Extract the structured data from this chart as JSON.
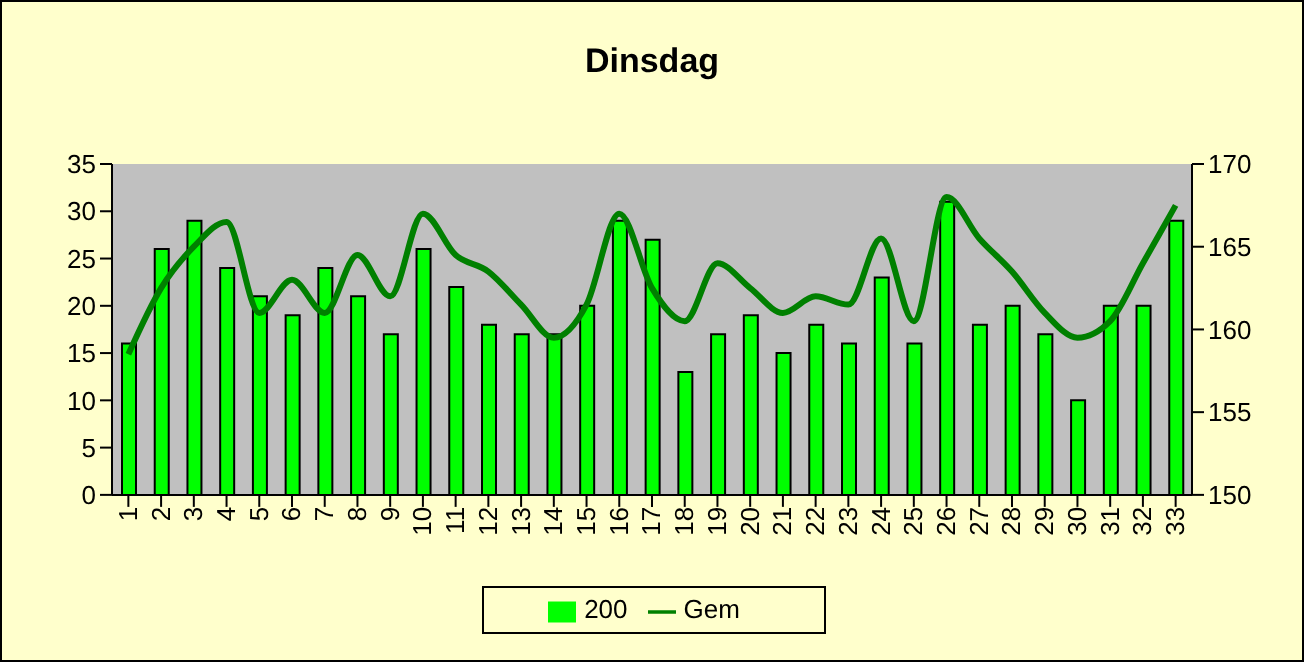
{
  "chart_data": {
    "type": "bar",
    "title": "Dinsdag",
    "categories": [
      "1",
      "2",
      "3",
      "4",
      "5",
      "6",
      "7",
      "8",
      "9",
      "10",
      "11",
      "12",
      "13",
      "14",
      "15",
      "16",
      "17",
      "18",
      "19",
      "20",
      "21",
      "22",
      "23",
      "24",
      "25",
      "26",
      "27",
      "28",
      "29",
      "30",
      "31",
      "32",
      "33"
    ],
    "series": [
      {
        "name": "200",
        "color": "#00ff00",
        "values": [
          16,
          26,
          29,
          24,
          21,
          19,
          24,
          21,
          17,
          26,
          22,
          18,
          17,
          17,
          20,
          29,
          27,
          13,
          17,
          19,
          15,
          18,
          16,
          23,
          16,
          31,
          18,
          20,
          17,
          10,
          20,
          20,
          29
        ]
      },
      {
        "name": "Gem",
        "type": "line",
        "axis": "y2",
        "color": "#008000",
        "values": [
          158.5,
          162.5,
          165,
          166.5,
          161,
          163,
          161,
          164.5,
          162,
          167,
          164.5,
          163.5,
          161.5,
          159.5,
          161.5,
          167,
          162.5,
          160.5,
          164,
          162.5,
          161,
          162,
          161.5,
          165.5,
          160.5,
          168,
          165.5,
          163.5,
          161,
          159.5,
          160.5,
          164,
          167.5
        ]
      }
    ],
    "ylim": [
      0,
      35
    ],
    "yticks": [
      0,
      5,
      10,
      15,
      20,
      25,
      30,
      35
    ],
    "y2lim": [
      150,
      170
    ],
    "y2ticks": [
      150,
      155,
      160,
      165,
      170
    ],
    "grid": false,
    "legend": "bottom",
    "marker": "none"
  }
}
